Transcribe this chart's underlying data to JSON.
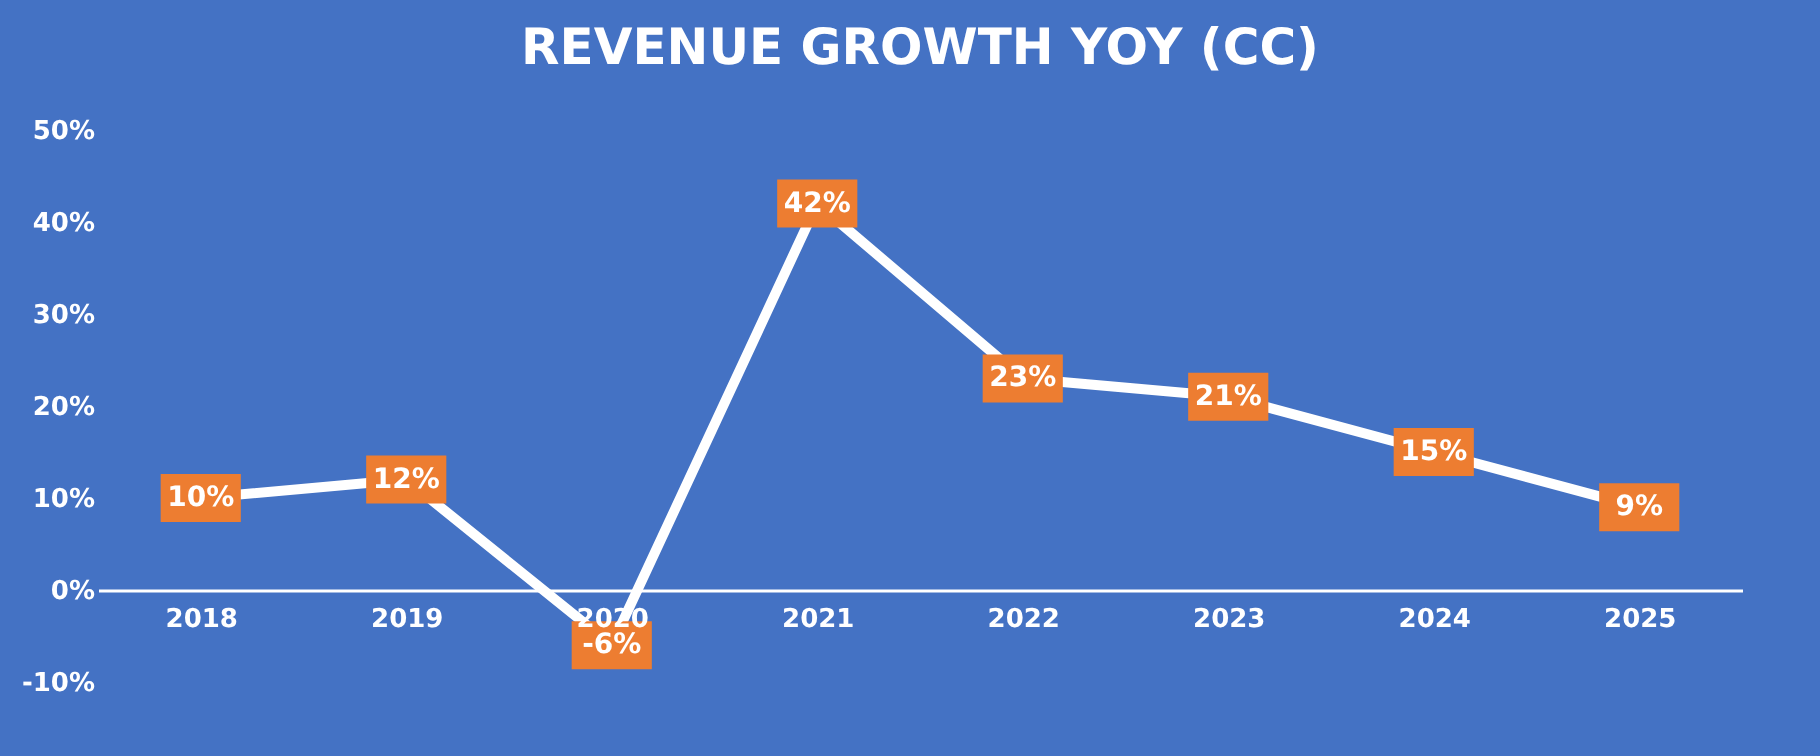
{
  "chart_data": {
    "type": "line",
    "title": "REVENUE GROWTH YOY (CC)",
    "categories": [
      "2018",
      "2019",
      "2020",
      "2021",
      "2022",
      "2023",
      "2024",
      "2025"
    ],
    "series": [
      {
        "color": "#ffffff",
        "values": [
          10,
          12,
          -6,
          42,
          23,
          21,
          15,
          9
        ],
        "value_labels": [
          "10%",
          "12%",
          "-6%",
          "42%",
          "23%",
          "21%",
          "15%",
          "9%"
        ]
      }
    ],
    "ylim": [
      -10,
      50
    ],
    "yticks": [
      {
        "value": -10,
        "label": "-10%"
      },
      {
        "value": 0,
        "label": "0%"
      },
      {
        "value": 10,
        "label": "10%"
      },
      {
        "value": 20,
        "label": "20%"
      },
      {
        "value": 30,
        "label": "30%"
      },
      {
        "value": 40,
        "label": "40%"
      },
      {
        "value": 50,
        "label": "50%"
      }
    ],
    "marker": "square",
    "line_style": "solid"
  }
}
